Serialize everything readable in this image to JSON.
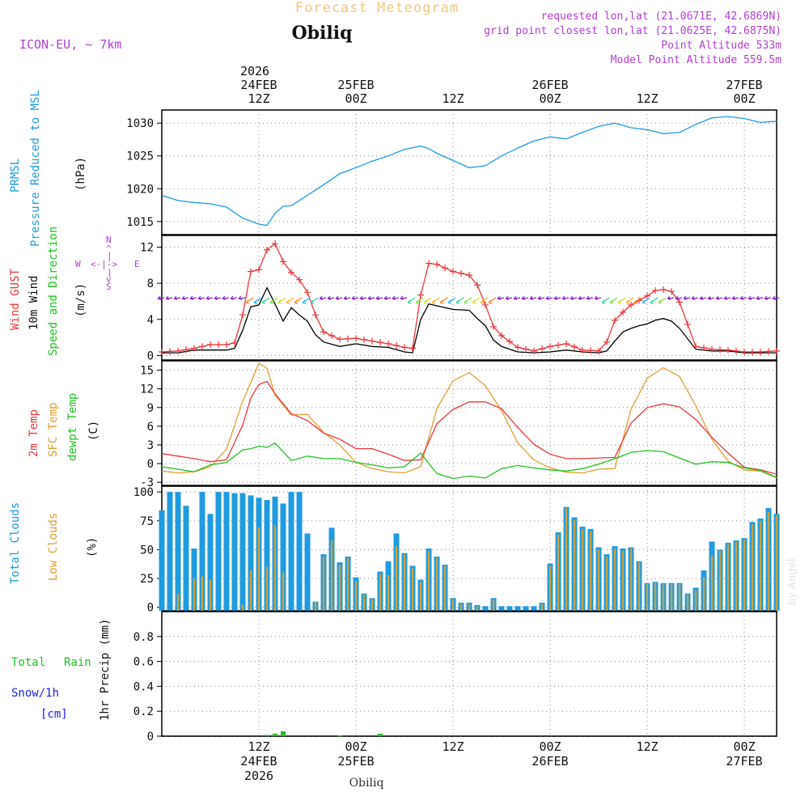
{
  "header": {
    "title_faded": "Forecast Meteogram",
    "location": "Obiliq",
    "model": "ICON-EU, ~ 7km",
    "requested": "requested lon,lat (21.0671E, 42.6869N)",
    "grid": "grid point closest lon,lat (21.0625E, 42.6875N)",
    "point_alt": "Point Altitude 533m",
    "model_alt": "Model Point Altitude 559.5m"
  },
  "footer": {
    "location": "Obiliq",
    "watermark": "by Angel"
  },
  "time_axis": {
    "top_year": "2026",
    "top_ticks": [
      {
        "t": 12,
        "line1": "24FEB",
        "line2": "12Z"
      },
      {
        "t": 24,
        "line1": "25FEB",
        "line2": "00Z"
      },
      {
        "t": 36,
        "line1": "",
        "line2": "12Z"
      },
      {
        "t": 48,
        "line1": "26FEB",
        "line2": "00Z"
      },
      {
        "t": 60,
        "line1": "",
        "line2": "12Z"
      },
      {
        "t": 72,
        "line1": "27FEB",
        "line2": "00Z"
      }
    ],
    "bottom_ticks": [
      {
        "t": 12,
        "line1": "12Z",
        "line2": "24FEB",
        "line3": "2026"
      },
      {
        "t": 24,
        "line1": "00Z",
        "line2": "25FEB",
        "line3": ""
      },
      {
        "t": 36,
        "line1": "12Z",
        "line2": "",
        "line3": ""
      },
      {
        "t": 48,
        "line1": "00Z",
        "line2": "26FEB",
        "line3": ""
      },
      {
        "t": 60,
        "line1": "12Z",
        "line2": "",
        "line3": ""
      },
      {
        "t": 72,
        "line1": "00Z",
        "line2": "27FEB",
        "line3": ""
      }
    ]
  },
  "panel_labels": {
    "pressure": {
      "a": "PRMSL",
      "b": "Pressure Reduced to MSL",
      "unit": "(hPa)"
    },
    "wind": {
      "a": "Wind GUST",
      "b": "10m Wind",
      "c": "Speed and Direction",
      "unit": "(m/s)",
      "compass_n": "N",
      "compass_s": "S",
      "compass_w": "W",
      "compass_e": "E",
      "compass_v1": "^",
      "compass_v2": "|",
      "compass_v3": "v",
      "compass_h": "<-|->"
    },
    "temp": {
      "a": "2m Temp",
      "b": "SFC Temp",
      "c": "dewpt Temp",
      "unit": "(C)"
    },
    "clouds": {
      "a": "Total Clouds",
      "b": "Low Clouds",
      "unit": "(%)"
    },
    "precip": {
      "a": "Total",
      "b": "Rain",
      "c": "Snow/1h",
      "d": "[cm]",
      "unit": "1hr Precip (mm)"
    }
  },
  "colors": {
    "pressure": "#1e9be0",
    "gust": "#e8383c",
    "wind": "#000000",
    "temp2m": "#e8383c",
    "sfc": "#e0a030",
    "dew": "#22c022",
    "total_cloud": "#1e9be0",
    "low_cloud": "#c8a040",
    "rain": "#22c022",
    "snow": "#2020e0",
    "meta": "#b040d0",
    "grid": "#888888",
    "faded": "#f0c880"
  },
  "chart_data": [
    {
      "type": "line",
      "title": "PRMSL Pressure Reduced to MSL",
      "ylabel": "(hPa)",
      "ylim": [
        1013,
        1032
      ],
      "yticks": [
        1015,
        1020,
        1025,
        1030
      ],
      "x_hours": [
        0,
        2,
        4,
        6,
        8,
        10,
        12,
        13,
        14,
        15,
        16,
        18,
        20,
        22,
        24,
        26,
        28,
        30,
        32,
        33,
        34,
        36,
        38,
        40,
        42,
        44,
        46,
        48,
        50,
        52,
        54,
        56,
        58,
        60,
        62,
        64,
        66,
        68,
        70,
        72,
        74,
        76
      ],
      "series": [
        {
          "name": "PRMSL",
          "values": [
            1019,
            1018.2,
            1017.9,
            1017.7,
            1017.2,
            1015.5,
            1014.6,
            1014.4,
            1016.3,
            1017.3,
            1017.4,
            1019,
            1020.6,
            1022.3,
            1023.2,
            1024.2,
            1025,
            1026,
            1026.5,
            1026.1,
            1025.4,
            1024.3,
            1023.2,
            1023.5,
            1025,
            1026.2,
            1027.3,
            1027.9,
            1027.6,
            1028.6,
            1029.5,
            1030,
            1029.3,
            1029,
            1028.4,
            1028.6,
            1029.8,
            1030.8,
            1031,
            1030.7,
            1030.1,
            1030.3
          ]
        }
      ]
    },
    {
      "type": "line",
      "title": "Wind GUST / 10m Wind Speed and Direction",
      "ylabel": "(m/s)",
      "ylim": [
        -0.5,
        13.3
      ],
      "yticks": [
        0,
        4,
        8,
        12
      ],
      "x_hours": [
        0,
        2,
        4,
        6,
        8,
        9,
        10,
        11,
        12,
        13,
        14,
        15,
        16,
        17,
        18,
        19,
        20,
        22,
        24,
        26,
        28,
        30,
        31,
        32,
        33,
        34,
        36,
        38,
        39,
        40,
        41,
        42,
        44,
        46,
        48,
        50,
        52,
        54,
        55,
        56,
        57,
        58,
        59,
        60,
        61,
        62,
        63,
        64,
        66,
        68,
        70,
        72,
        74,
        76
      ],
      "series": [
        {
          "name": "Wind GUST",
          "values": [
            0.4,
            0.5,
            0.8,
            1.2,
            1.2,
            1.4,
            4.5,
            9.3,
            9.5,
            11.7,
            12.4,
            10.4,
            9.2,
            8.4,
            7.0,
            4.5,
            2.6,
            1.8,
            1.9,
            1.6,
            1.3,
            0.9,
            0.8,
            6.7,
            10.2,
            10.1,
            9.3,
            8.9,
            7.8,
            5.6,
            3.2,
            2.2,
            0.9,
            0.5,
            1.0,
            1.3,
            0.6,
            0.5,
            1.5,
            3.9,
            4.8,
            5.6,
            6.1,
            6.6,
            7.2,
            7.3,
            7.1,
            5.9,
            1.0,
            0.7,
            0.6,
            0.4,
            0.4,
            0.5
          ]
        },
        {
          "name": "10m Wind",
          "values": [
            0.3,
            0.3,
            0.6,
            0.6,
            0.6,
            0.8,
            2.8,
            5.4,
            5.6,
            7.5,
            5.7,
            3.8,
            5.3,
            4.5,
            3.8,
            2.3,
            1.5,
            1.0,
            1.3,
            1.0,
            0.9,
            0.4,
            0.3,
            4.0,
            5.7,
            5.5,
            5.1,
            5.0,
            4.1,
            3.3,
            1.7,
            1.0,
            0.4,
            0.3,
            0.4,
            0.6,
            0.4,
            0.3,
            0.5,
            1.6,
            2.6,
            3.0,
            3.3,
            3.5,
            3.9,
            4.1,
            3.8,
            3.0,
            0.7,
            0.5,
            0.5,
            0.3,
            0.3,
            0.3
          ]
        }
      ],
      "direction_strip_value": 6.3
    },
    {
      "type": "line",
      "title": "2m Temp / SFC Temp / dewpt Temp",
      "ylabel": "(C)",
      "ylim": [
        -3.5,
        16.5
      ],
      "yticks": [
        -3,
        0,
        3,
        6,
        9,
        12,
        15
      ],
      "x_hours": [
        0,
        2,
        4,
        6,
        8,
        10,
        11,
        12,
        13,
        14,
        16,
        18,
        20,
        22,
        24,
        26,
        28,
        30,
        32,
        34,
        36,
        38,
        40,
        42,
        44,
        46,
        48,
        50,
        52,
        54,
        56,
        58,
        60,
        62,
        64,
        66,
        68,
        70,
        72,
        74,
        76
      ],
      "series": [
        {
          "name": "2m Temp",
          "values": [
            1.6,
            1.2,
            0.8,
            0.3,
            0.6,
            6.2,
            10.5,
            12.7,
            13.2,
            11.2,
            8.0,
            6.9,
            4.9,
            3.9,
            2.4,
            2.4,
            1.5,
            0.5,
            0.6,
            6.4,
            8.7,
            9.9,
            9.9,
            8.8,
            5.8,
            3.1,
            1.5,
            0.8,
            0.8,
            0.9,
            1.0,
            6.5,
            9.0,
            9.6,
            9.1,
            7.1,
            4.2,
            1.7,
            -0.6,
            -1.0,
            -1.7
          ]
        },
        {
          "name": "SFC Temp",
          "values": [
            -1.2,
            -1.5,
            -1.3,
            -0.5,
            2.3,
            10.0,
            13.0,
            16.1,
            15.3,
            11.0,
            7.8,
            7.9,
            5.0,
            3.0,
            0.2,
            -0.8,
            -1.3,
            -1.5,
            -0.5,
            8.8,
            13.3,
            14.6,
            12.5,
            8.5,
            3.3,
            0.6,
            -0.7,
            -1.4,
            -1.5,
            -0.9,
            -0.8,
            8.7,
            13.7,
            15.4,
            14.0,
            9.3,
            3.9,
            0.4,
            -1.0,
            -1.2,
            -2.3
          ]
        },
        {
          "name": "dewpt Temp",
          "values": [
            -0.5,
            -0.9,
            -1.3,
            -0.2,
            0.2,
            2.2,
            2.4,
            2.8,
            2.6,
            3.3,
            0.5,
            1.2,
            0.8,
            0.8,
            0.2,
            -0.2,
            -0.7,
            -0.5,
            1.7,
            -1.6,
            -2.4,
            -2.0,
            -2.3,
            -0.8,
            -0.3,
            -0.7,
            -1.0,
            -1.2,
            -0.8,
            -0.1,
            0.8,
            1.8,
            2.1,
            1.9,
            0.9,
            -0.1,
            0.3,
            0.2,
            -0.7,
            -1.1,
            -2.2
          ]
        }
      ]
    },
    {
      "type": "bar",
      "title": "Total Clouds / Low Clouds",
      "ylabel": "(%)",
      "ylim": [
        -3,
        105
      ],
      "yticks": [
        0,
        25,
        50,
        75,
        100
      ],
      "x_hours": [
        0,
        1,
        2,
        3,
        4,
        5,
        6,
        7,
        8,
        9,
        10,
        11,
        12,
        13,
        14,
        15,
        16,
        17,
        18,
        19,
        20,
        21,
        22,
        23,
        24,
        25,
        26,
        27,
        28,
        29,
        30,
        31,
        32,
        33,
        34,
        35,
        36,
        37,
        38,
        39,
        40,
        41,
        42,
        43,
        44,
        45,
        46,
        47,
        48,
        49,
        50,
        51,
        52,
        53,
        54,
        55,
        56,
        57,
        58,
        59,
        60,
        61,
        62,
        63,
        64,
        65,
        66,
        67,
        68,
        69,
        70,
        71,
        72,
        73,
        74,
        75,
        76
      ],
      "series": [
        {
          "name": "Total Clouds",
          "values": [
            84,
            100,
            100,
            88,
            51,
            100,
            81,
            100,
            100,
            99,
            99,
            97,
            95,
            93,
            96,
            90,
            100,
            100,
            64,
            5,
            46,
            69,
            39,
            44,
            26,
            12,
            8,
            31,
            40,
            64,
            47,
            36,
            24,
            51,
            44,
            37,
            8,
            4,
            4,
            2,
            1,
            8,
            1,
            1,
            1,
            1,
            1,
            4,
            38,
            65,
            87,
            78,
            70,
            68,
            52,
            46,
            53,
            51,
            52,
            40,
            21,
            22,
            21,
            21,
            21,
            12,
            17,
            32,
            57,
            50,
            56,
            58,
            60,
            74,
            77,
            86,
            81
          ]
        },
        {
          "name": "Low Clouds",
          "values": [
            0,
            0,
            12,
            0,
            25,
            27,
            24,
            0,
            0,
            0,
            2,
            32,
            69,
            35,
            71,
            30,
            0,
            0,
            0,
            5,
            44,
            58,
            37,
            43,
            23,
            11,
            7,
            29,
            28,
            53,
            46,
            34,
            22,
            49,
            43,
            36,
            7,
            3,
            3,
            1,
            0,
            7,
            0,
            0,
            0,
            0,
            0,
            3,
            36,
            63,
            86,
            76,
            68,
            66,
            50,
            44,
            51,
            49,
            51,
            39,
            20,
            21,
            20,
            20,
            20,
            11,
            15,
            26,
            45,
            49,
            55,
            57,
            59,
            72,
            75,
            83,
            80
          ]
        }
      ]
    },
    {
      "type": "bar",
      "title": "Total Rain / Snow 1hr Precip",
      "ylabel": "1hr Precip (mm)",
      "ylim": [
        0,
        1.0
      ],
      "yticks": [
        0,
        0.2,
        0.4,
        0.6,
        0.8
      ],
      "ytick_labels": [
        "0",
        "0.2",
        "0.4",
        "0.6",
        "0.8"
      ],
      "x_hours": [
        13,
        14,
        15,
        22,
        27
      ],
      "series": [
        {
          "name": "Rain",
          "values": [
            0.01,
            0.02,
            0.04,
            0.005,
            0.02
          ]
        },
        {
          "name": "Snow/1h",
          "values": [
            0,
            0,
            0,
            0,
            0
          ]
        }
      ]
    }
  ]
}
